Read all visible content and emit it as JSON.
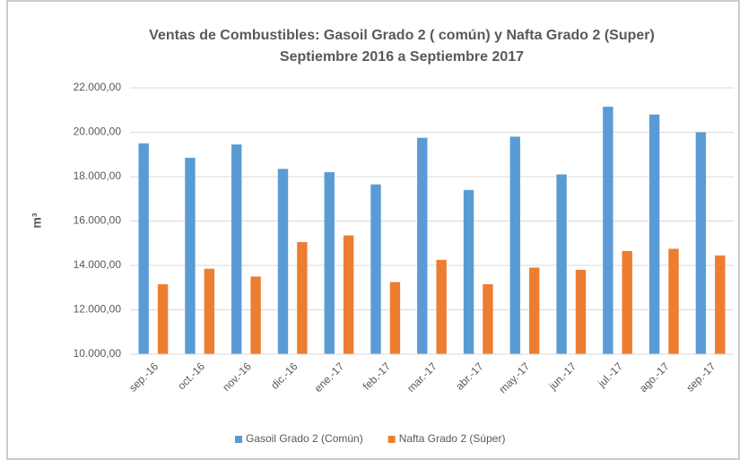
{
  "chart_data": {
    "type": "bar",
    "title": "Ventas de Combustibles: Gasoil Grado 2 ( común) y Nafta Grado 2 (Super)",
    "subtitle": "Septiembre 2016 a Septiembre 2017",
    "y_label": "m³",
    "categories": [
      "sep.-16",
      "oct.-16",
      "nov.-16",
      "dic.-16",
      "ene.-17",
      "feb.-17",
      "mar.-17",
      "abr.-17",
      "may.-17",
      "jun.-17",
      "jul.-17",
      "ago.-17",
      "sep.-17"
    ],
    "series": [
      {
        "name": "Gasoil Grado 2 (Común)",
        "color": "#5b9bd5",
        "values": [
          19500,
          18850,
          19450,
          18350,
          18200,
          17650,
          19750,
          17400,
          19800,
          18100,
          21150,
          20800,
          20000
        ]
      },
      {
        "name": "Nafta Grado 2 (Súper)",
        "color": "#ed7d31",
        "values": [
          13150,
          13850,
          13500,
          15050,
          15350,
          13250,
          14250,
          13150,
          13900,
          13800,
          14650,
          14750,
          14450
        ]
      }
    ],
    "ylim": [
      10000,
      22000
    ],
    "yticks": [
      {
        "value": 10000,
        "label": "10.000,00"
      },
      {
        "value": 12000,
        "label": "12.000,00"
      },
      {
        "value": 14000,
        "label": "14.000,00"
      },
      {
        "value": 16000,
        "label": "16.000,00"
      },
      {
        "value": 18000,
        "label": "18.000,00"
      },
      {
        "value": 20000,
        "label": "20.000,00"
      },
      {
        "value": 22000,
        "label": "22.000,00"
      }
    ],
    "grid": true,
    "legend": "bottom"
  }
}
